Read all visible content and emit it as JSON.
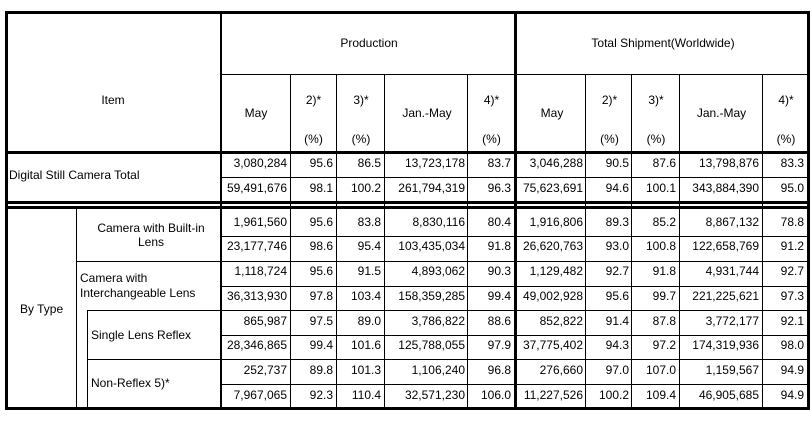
{
  "header": {
    "item": "Item",
    "production": "Production",
    "total_shipment": "Total Shipment(Worldwide)",
    "col_may": "May",
    "col_2": "2)*",
    "col_3": "3)*",
    "col_janmay": "Jan.-May",
    "col_4": "4)*",
    "pct": "(%)"
  },
  "total": {
    "label": "Digital Still Camera Total",
    "rows": [
      [
        "3,080,284",
        "95.6",
        "86.5",
        "13,723,178",
        "83.7",
        "3,046,288",
        "90.5",
        "87.6",
        "13,798,876",
        "83.3"
      ],
      [
        "59,491,676",
        "98.1",
        "100.2",
        "261,794,319",
        "96.3",
        "75,623,691",
        "94.6",
        "100.1",
        "343,884,390",
        "95.0"
      ]
    ]
  },
  "by_type": {
    "label": "By Type",
    "groups": [
      {
        "label": "Camera with Built-in Lens",
        "rows": [
          [
            "1,961,560",
            "95.6",
            "83.8",
            "8,830,116",
            "80.4",
            "1,916,806",
            "89.3",
            "85.2",
            "8,867,132",
            "78.8"
          ],
          [
            "23,177,746",
            "98.6",
            "95.4",
            "103,435,034",
            "91.8",
            "26,620,763",
            "93.0",
            "100.8",
            "122,658,769",
            "91.2"
          ]
        ]
      },
      {
        "label_line1": "Camera with",
        "label_line2": "Interchangeable Lens",
        "rows": [
          [
            "1,118,724",
            "95.6",
            "91.5",
            "4,893,062",
            "90.3",
            "1,129,482",
            "92.7",
            "91.8",
            "4,931,744",
            "92.7"
          ],
          [
            "36,313,930",
            "97.8",
            "103.4",
            "158,359,285",
            "99.4",
            "49,002,928",
            "95.6",
            "99.7",
            "221,225,621",
            "97.3"
          ]
        ]
      },
      {
        "label": "Single Lens Reflex",
        "rows": [
          [
            "865,987",
            "97.5",
            "89.0",
            "3,786,822",
            "88.6",
            "852,822",
            "91.4",
            "87.8",
            "3,772,177",
            "92.1"
          ],
          [
            "28,346,865",
            "99.4",
            "101.6",
            "125,788,055",
            "97.9",
            "37,775,402",
            "94.3",
            "97.2",
            "174,319,936",
            "98.0"
          ]
        ]
      },
      {
        "label": "Non-Reflex 5)*",
        "rows": [
          [
            "252,737",
            "89.8",
            "101.3",
            "1,106,240",
            "96.8",
            "276,660",
            "97.0",
            "107.0",
            "1,159,567",
            "94.9"
          ],
          [
            "7,967,065",
            "92.3",
            "110.4",
            "32,571,230",
            "106.0",
            "11,227,526",
            "100.2",
            "109.4",
            "46,905,685",
            "94.9"
          ]
        ]
      }
    ]
  }
}
